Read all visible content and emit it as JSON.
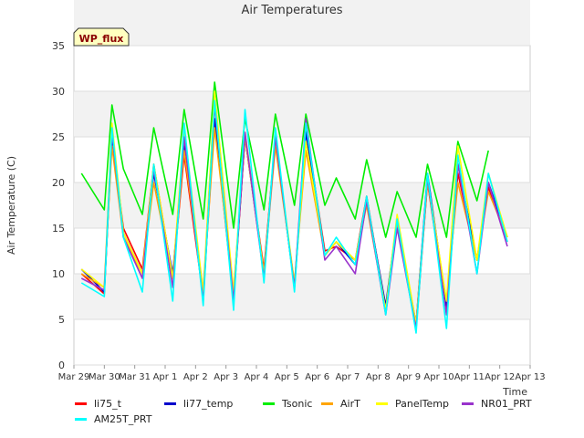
{
  "chart_data": {
    "type": "line",
    "title": "Air Temperatures",
    "xlabel": "Time",
    "ylabel": "Air Temperature (C)",
    "ylim": [
      0,
      35
    ],
    "xlim": [
      "2023-03-29",
      "2023-04-13"
    ],
    "yticks": [
      "0",
      "5",
      "10",
      "15",
      "20",
      "25",
      "30",
      "35"
    ],
    "xticks": [
      "Mar 29",
      "Mar 30",
      "Mar 31",
      "Apr 1",
      "Apr 2",
      "Apr 3",
      "Apr 4",
      "Apr 5",
      "Apr 6",
      "Apr 7",
      "Apr 8",
      "Apr 9",
      "Apr 10",
      "Apr 11",
      "Apr 12",
      "Apr 13"
    ],
    "grid": true,
    "legend_position": "bottom",
    "annotation": "WP_flux",
    "x": [
      "2023-03-29 06:00",
      "2023-03-30 00:00",
      "2023-03-30 06:00",
      "2023-03-30 15:00",
      "2023-03-31 06:00",
      "2023-03-31 15:00",
      "2023-04-01 06:00",
      "2023-04-01 15:00",
      "2023-04-02 06:00",
      "2023-04-02 15:00",
      "2023-04-03 06:00",
      "2023-04-03 15:00",
      "2023-04-04 06:00",
      "2023-04-04 15:00",
      "2023-04-05 06:00",
      "2023-04-05 15:00",
      "2023-04-06 06:00",
      "2023-04-06 15:00",
      "2023-04-07 06:00",
      "2023-04-07 15:00",
      "2023-04-08 06:00",
      "2023-04-08 15:00",
      "2023-04-09 06:00",
      "2023-04-09 15:00",
      "2023-04-10 06:00",
      "2023-04-10 15:00",
      "2023-04-11 06:00",
      "2023-04-11 15:00",
      "2023-04-12 06:00",
      "2023-04-12 15:00"
    ],
    "series": [
      {
        "name": "li75_t",
        "color": "#ff0000",
        "values": [
          10,
          7.8,
          25,
          15,
          10.5,
          22,
          9.5,
          23,
          7.5,
          27,
          7,
          25,
          10.5,
          25,
          8.5,
          26,
          12.5,
          13,
          11.5,
          18.5,
          6,
          16,
          4,
          20,
          6,
          21,
          11.5,
          19.5,
          13.5,
          null
        ]
      },
      {
        "name": "li77_temp",
        "color": "#0000cc",
        "values": [
          10.5,
          8,
          25,
          14.5,
          10,
          21,
          10,
          24,
          8,
          27,
          7.5,
          25,
          10,
          25,
          8.5,
          25.5,
          12,
          13.5,
          11,
          18,
          6.5,
          16,
          4.5,
          21,
          6.5,
          22,
          11.5,
          20,
          14,
          null
        ]
      },
      {
        "name": "Tsonic",
        "color": "#00ee00",
        "values": [
          21,
          17,
          28.5,
          21.5,
          16.5,
          26,
          16.5,
          28,
          16,
          31,
          15,
          27,
          17,
          27.5,
          17.5,
          27.5,
          17.5,
          20.5,
          16,
          22.5,
          14,
          19,
          14,
          22,
          14,
          24.5,
          18,
          23.5,
          null,
          null
        ]
      },
      {
        "name": "AirT",
        "color": "#ffa500",
        "values": [
          10,
          8.5,
          24,
          14,
          10,
          20,
          9.5,
          23.5,
          8,
          26,
          8,
          25,
          10,
          24,
          9,
          23.5,
          12,
          13.5,
          11.5,
          17.5,
          6,
          15.5,
          4.5,
          20,
          7,
          20,
          11.5,
          19,
          14,
          null
        ]
      },
      {
        "name": "PanelTemp",
        "color": "#ffff00",
        "values": [
          10.5,
          8.5,
          26.5,
          14.5,
          10,
          22,
          9.5,
          26,
          8,
          30,
          8,
          25.5,
          10,
          25,
          9,
          24.5,
          12,
          13.5,
          11.5,
          18,
          6,
          16.5,
          4.5,
          20.5,
          7,
          24,
          11.5,
          21,
          14,
          null
        ]
      },
      {
        "name": "NR01_PRT",
        "color": "#9933cc",
        "values": [
          9.5,
          8.2,
          25.5,
          14,
          9.5,
          21.5,
          8.5,
          25,
          7,
          28.5,
          7,
          25.5,
          9.5,
          25,
          8.5,
          27,
          11.5,
          13,
          10,
          18,
          5.5,
          15,
          4,
          20.5,
          5.5,
          22,
          10,
          20,
          13,
          null
        ]
      },
      {
        "name": "AM25T_PRT",
        "color": "#00ffff",
        "values": [
          9,
          7.5,
          26,
          14,
          8,
          22,
          7,
          26.5,
          6.5,
          29,
          6,
          28,
          9,
          26,
          8,
          26.5,
          12,
          14,
          11,
          18.5,
          5.5,
          16,
          3.5,
          21,
          4,
          23,
          10,
          21,
          13.5,
          null
        ]
      }
    ]
  }
}
